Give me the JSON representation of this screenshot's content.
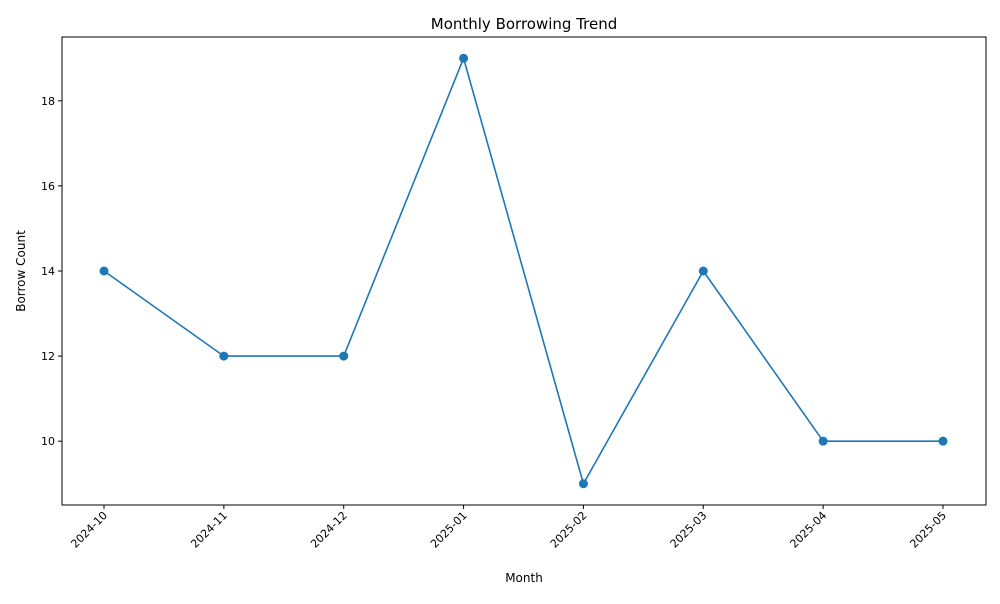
{
  "chart_data": {
    "type": "line",
    "title": "Monthly Borrowing Trend",
    "xlabel": "Month",
    "ylabel": "Borrow Count",
    "categories": [
      "2024-10",
      "2024-11",
      "2024-12",
      "2025-01",
      "2025-02",
      "2025-03",
      "2025-04",
      "2025-05"
    ],
    "series": [
      {
        "values": [
          14,
          12,
          12,
          19,
          9,
          14,
          10,
          10
        ],
        "color": "#1f77b4",
        "marker": "circle"
      }
    ],
    "yticks": [
      10,
      12,
      14,
      16,
      18
    ],
    "ylim": [
      8.5,
      19.5
    ],
    "grid": false,
    "legend": "none",
    "xtick_rotation": 45
  }
}
